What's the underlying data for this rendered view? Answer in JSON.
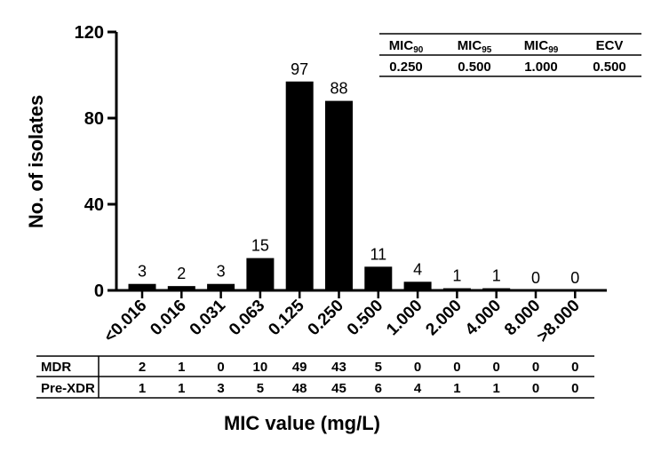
{
  "chart_data": {
    "type": "bar",
    "categories": [
      "<0.016",
      "0.016",
      "0.031",
      "0.063",
      "0.125",
      "0.250",
      "0.500",
      "1.000",
      "2.000",
      "4.000",
      "8.000",
      ">8.000"
    ],
    "values": [
      3,
      2,
      3,
      15,
      97,
      88,
      11,
      4,
      1,
      1,
      0,
      0
    ],
    "xlabel": "MIC value (mg/L)",
    "ylabel": "No. of isolates",
    "ylim": [
      0,
      120
    ],
    "yticks": [
      0,
      40,
      80,
      120
    ],
    "bar_color": "#000000",
    "grid": false,
    "legend": "none"
  },
  "summary_table": {
    "headers": [
      {
        "base": "MIC",
        "sub": "90"
      },
      {
        "base": "MIC",
        "sub": "95"
      },
      {
        "base": "MIC",
        "sub": "99"
      },
      {
        "base": "ECV",
        "sub": ""
      }
    ],
    "values": [
      "0.250",
      "0.500",
      "1.000",
      "0.500"
    ]
  },
  "resistance_table": {
    "rows": [
      {
        "label": "MDR",
        "values": [
          "2",
          "1",
          "0",
          "10",
          "49",
          "43",
          "5",
          "0",
          "0",
          "0",
          "0",
          "0"
        ]
      },
      {
        "label": "Pre-XDR",
        "values": [
          "1",
          "1",
          "3",
          "5",
          "48",
          "45",
          "6",
          "4",
          "1",
          "1",
          "0",
          "0"
        ]
      }
    ]
  }
}
